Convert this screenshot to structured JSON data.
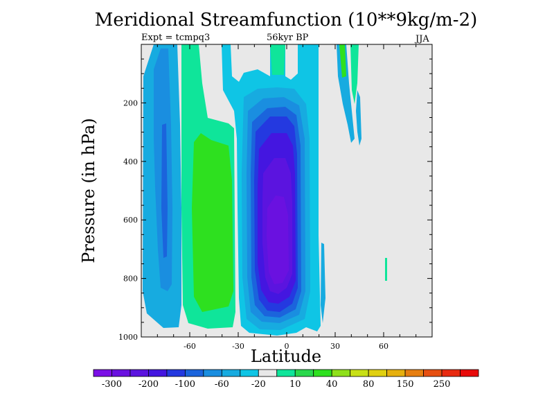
{
  "title": "Meridional Streamfunction (10**9kg/m-2)",
  "subtitle_left": "Expt = tcmpq3",
  "subtitle_center": "56kyr BP",
  "subtitle_right": "JJA",
  "chart_data": {
    "type": "contour",
    "title": "Meridional Streamfunction (10**9kg/m-2)",
    "xlabel": "Latitude",
    "ylabel": "Pressure (in hPa)",
    "xlim": [
      -90,
      90
    ],
    "ylim": [
      1000,
      0
    ],
    "xticks": [
      -60,
      -30,
      0,
      30,
      60
    ],
    "yticks": [
      200,
      400,
      600,
      800,
      1000
    ],
    "grid": false,
    "colorbar": {
      "position": "bottom",
      "tick_labels": [
        "-300",
        "-200",
        "-100",
        "-60",
        "-20",
        "10",
        "40",
        "80",
        "150",
        "250"
      ],
      "colors": [
        "#7b0fe6",
        "#6a11e0",
        "#5b14df",
        "#4416e0",
        "#2439e0",
        "#1b64dc",
        "#1a8ee0",
        "#17abe0",
        "#0fc5e5",
        "#e8e8e8",
        "#0fe59a",
        "#29d84c",
        "#2ee01f",
        "#8ee01a",
        "#c8e016",
        "#e0d010",
        "#e6b00e",
        "#e67e10",
        "#e64f10",
        "#e82a10",
        "#e80a0a"
      ]
    },
    "features": [
      {
        "name": "negative cell",
        "center_lat": 0,
        "lat_range": [
          -28,
          18
        ],
        "pressure_range": [
          100,
          960
        ],
        "min_value": -100
      },
      {
        "name": "positive cell",
        "center_lat": -45,
        "lat_range": [
          -60,
          -25
        ],
        "pressure_range": [
          300,
          900
        ],
        "max_value": 40
      },
      {
        "name": "weak negative band",
        "lat_range": [
          -85,
          -55
        ],
        "pressure_range": [
          0,
          980
        ],
        "min_value": -60
      }
    ]
  }
}
